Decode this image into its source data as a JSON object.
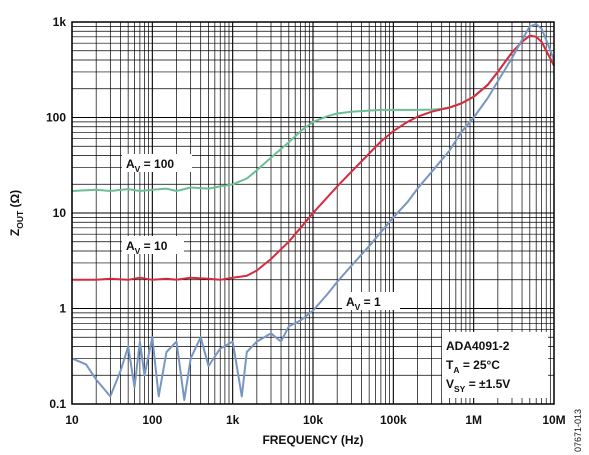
{
  "chart_data": {
    "type": "line",
    "title": "",
    "xlabel": "FREQUENCY (Hz)",
    "ylabel": {
      "main": "Z",
      "sub": "OUT",
      "unit": " (Ω)"
    },
    "x_scale": "log",
    "y_scale": "log",
    "xlim": [
      10,
      10000000
    ],
    "ylim": [
      0.1,
      1000
    ],
    "x_ticks": [
      {
        "value": 10,
        "label": "10"
      },
      {
        "value": 100,
        "label": "100"
      },
      {
        "value": 1000,
        "label": "1k"
      },
      {
        "value": 10000,
        "label": "10k"
      },
      {
        "value": 100000,
        "label": "100k"
      },
      {
        "value": 1000000,
        "label": "1M"
      },
      {
        "value": 10000000,
        "label": "10M"
      }
    ],
    "y_ticks": [
      {
        "value": 0.1,
        "label": "0.1"
      },
      {
        "value": 1,
        "label": "1"
      },
      {
        "value": 10,
        "label": "10"
      },
      {
        "value": 100,
        "label": "100"
      },
      {
        "value": 1000,
        "label": "1k"
      }
    ],
    "grid": true,
    "series": [
      {
        "label_main": "A",
        "label_sub": "V",
        "label_rest": " = 100",
        "color": "#6cbf94",
        "x": [
          10,
          20,
          30,
          50,
          70,
          100,
          150,
          200,
          300,
          500,
          700,
          1000,
          1500,
          2000,
          3000,
          5000,
          7000,
          10000,
          15000,
          20000,
          30000,
          50000,
          70000,
          100000,
          150000,
          200000,
          300000,
          400000,
          500000,
          700000,
          1000000,
          1500000,
          2000000,
          3000000,
          4000000,
          5000000,
          6000000,
          7000000,
          8000000,
          10000000
        ],
        "y": [
          17,
          17.5,
          17,
          17.8,
          17,
          17.5,
          18,
          17,
          18.5,
          18,
          19,
          20,
          23,
          28,
          38,
          55,
          72,
          90,
          103,
          110,
          115,
          118,
          120,
          120,
          120,
          120,
          121,
          123,
          128,
          140,
          165,
          220,
          300,
          480,
          620,
          720,
          700,
          620,
          500,
          350
        ]
      },
      {
        "label_main": "A",
        "label_sub": "V",
        "label_rest": " = 10",
        "color": "#d62b3f",
        "x": [
          10,
          20,
          30,
          50,
          70,
          100,
          150,
          200,
          300,
          500,
          700,
          1000,
          1500,
          2000,
          3000,
          5000,
          7000,
          10000,
          15000,
          20000,
          30000,
          50000,
          70000,
          100000,
          150000,
          200000,
          300000,
          400000,
          500000,
          700000,
          1000000,
          1500000,
          2000000,
          3000000,
          4000000,
          5000000,
          6000000,
          7000000,
          8000000,
          10000000
        ],
        "y": [
          2,
          2,
          2.05,
          2,
          2.1,
          2,
          2.05,
          2,
          2.1,
          2.05,
          2,
          2.1,
          2.2,
          2.5,
          3.3,
          5,
          7,
          10,
          14.5,
          19,
          27,
          42,
          56,
          72,
          90,
          102,
          115,
          122,
          127,
          140,
          165,
          220,
          300,
          480,
          620,
          720,
          700,
          620,
          500,
          350
        ]
      },
      {
        "label_main": "A",
        "label_sub": "V",
        "label_rest": " = 1",
        "color": "#7896c2",
        "x": [
          10,
          15,
          20,
          30,
          40,
          50,
          60,
          70,
          80,
          100,
          120,
          150,
          200,
          250,
          300,
          400,
          500,
          700,
          1000,
          1300,
          1500,
          2000,
          3000,
          4000,
          5000,
          7000,
          10000,
          15000,
          20000,
          30000,
          50000,
          70000,
          100000,
          150000,
          200000,
          300000,
          500000,
          700000,
          1000000,
          1500000,
          2000000,
          3000000,
          4000000,
          5000000,
          6000000,
          7000000,
          8000000,
          10000000
        ],
        "y": [
          0.3,
          0.26,
          0.18,
          0.12,
          0.22,
          0.4,
          0.15,
          0.45,
          0.2,
          0.5,
          0.12,
          0.35,
          0.45,
          0.11,
          0.3,
          0.5,
          0.25,
          0.38,
          0.45,
          0.12,
          0.35,
          0.45,
          0.55,
          0.45,
          0.65,
          0.75,
          0.95,
          1.4,
          1.9,
          2.8,
          4.5,
          6.3,
          9,
          13,
          18,
          27,
          45,
          70,
          100,
          160,
          240,
          420,
          650,
          900,
          950,
          850,
          650,
          400
        ]
      }
    ],
    "annotations": {
      "part": "ADA4091-2",
      "ta_main": "T",
      "ta_sub": "A",
      "ta_rest": " = 25°C",
      "vsy_main": "V",
      "vsy_sub": "SY",
      "vsy_rest": " = ±1.5V"
    },
    "figure_code": "07671-013"
  }
}
